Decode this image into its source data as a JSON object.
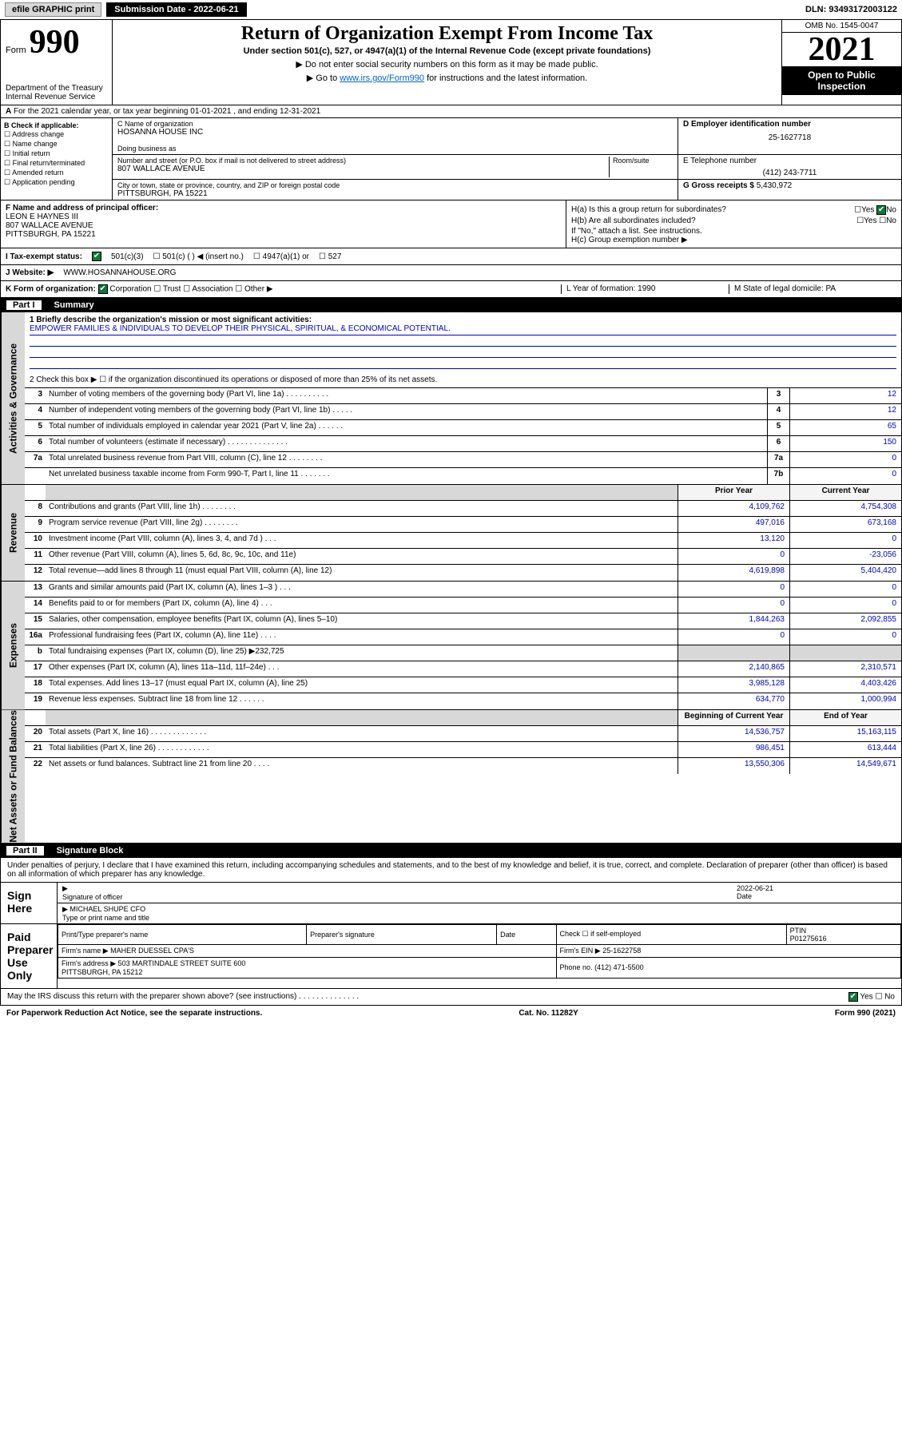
{
  "topbar": {
    "efile": "efile GRAPHIC print",
    "sub_label": "Submission Date - 2022-06-21",
    "dln": "DLN: 93493172003122"
  },
  "header": {
    "form_word": "Form",
    "form_num": "990",
    "dept": "Department of the Treasury\nInternal Revenue Service",
    "title": "Return of Organization Exempt From Income Tax",
    "subtitle": "Under section 501(c), 527, or 4947(a)(1) of the Internal Revenue Code (except private foundations)",
    "note1": "▶ Do not enter social security numbers on this form as it may be made public.",
    "note2_pre": "▶ Go to ",
    "note2_link": "www.irs.gov/Form990",
    "note2_post": " for instructions and the latest information.",
    "omb": "OMB No. 1545-0047",
    "year": "2021",
    "open": "Open to Public Inspection"
  },
  "lineA": "For the 2021 calendar year, or tax year beginning 01-01-2021 , and ending 12-31-2021",
  "boxB": {
    "label": "B Check if applicable:",
    "opts": [
      "Address change",
      "Name change",
      "Initial return",
      "Final return/terminated",
      "Amended return",
      "Application pending"
    ]
  },
  "boxC": {
    "name_lbl": "C Name of organization",
    "name": "HOSANNA HOUSE INC",
    "dba_lbl": "Doing business as",
    "addr_lbl": "Number and street (or P.O. box if mail is not delivered to street address)",
    "room_lbl": "Room/suite",
    "addr": "807 WALLACE AVENUE",
    "city_lbl": "City or town, state or province, country, and ZIP or foreign postal code",
    "city": "PITTSBURGH, PA  15221"
  },
  "boxD": {
    "lbl": "D Employer identification number",
    "val": "25-1627718"
  },
  "boxE": {
    "lbl": "E Telephone number",
    "val": "(412) 243-7711"
  },
  "boxG": {
    "lbl": "G Gross receipts $",
    "val": "5,430,972"
  },
  "boxF": {
    "lbl": "F Name and address of principal officer:",
    "name": "LEON E HAYNES III",
    "addr": "807 WALLACE AVENUE\nPITTSBURGH, PA  15221"
  },
  "boxH": {
    "a": "H(a) Is this a group return for subordinates?",
    "a_yes": "Yes",
    "a_no": "No",
    "b": "H(b) Are all subordinates included?",
    "b_note": "If \"No,\" attach a list. See instructions.",
    "c": "H(c) Group exemption number ▶"
  },
  "rowI": {
    "lbl": "I   Tax-exempt status:",
    "o1": "501(c)(3)",
    "o2": "501(c) (  ) ◀ (insert no.)",
    "o3": "4947(a)(1) or",
    "o4": "527"
  },
  "rowJ": {
    "lbl": "J   Website: ▶",
    "val": "WWW.HOSANNAHOUSE.ORG"
  },
  "rowK": {
    "lbl": "K Form of organization:",
    "o1": "Corporation",
    "o2": "Trust",
    "o3": "Association",
    "o4": "Other ▶",
    "L": "L Year of formation: 1990",
    "M": "M State of legal domicile: PA"
  },
  "part1": {
    "num": "Part I",
    "title": "Summary"
  },
  "mission": {
    "q1": "1  Briefly describe the organization's mission or most significant activities:",
    "txt": "EMPOWER FAMILIES & INDIVIDUALS TO DEVELOP THEIR PHYSICAL, SPIRITUAL, & ECONOMICAL POTENTIAL.",
    "q2": "2  Check this box ▶ ☐  if the organization discontinued its operations or disposed of more than 25% of its net assets."
  },
  "gov_lines": [
    {
      "n": "3",
      "t": "Number of voting members of the governing body (Part VI, line 1a)  .  .  .  .  .  .  .  .  .  .",
      "b": "3",
      "v": "12"
    },
    {
      "n": "4",
      "t": "Number of independent voting members of the governing body (Part VI, line 1b)  .  .  .  .  .",
      "b": "4",
      "v": "12"
    },
    {
      "n": "5",
      "t": "Total number of individuals employed in calendar year 2021 (Part V, line 2a)  .  .  .  .  .  .",
      "b": "5",
      "v": "65"
    },
    {
      "n": "6",
      "t": "Total number of volunteers (estimate if necessary)  .  .  .  .  .  .  .  .  .  .  .  .  .  .",
      "b": "6",
      "v": "150"
    },
    {
      "n": "7a",
      "t": "Total unrelated business revenue from Part VIII, column (C), line 12  .  .  .  .  .  .  .  .",
      "b": "7a",
      "v": "0"
    },
    {
      "n": "",
      "t": "Net unrelated business taxable income from Form 990-T, Part I, line 11  .  .  .  .  .  .  .",
      "b": "7b",
      "v": "0"
    }
  ],
  "rev_hdr": {
    "p": "Prior Year",
    "c": "Current Year"
  },
  "rev_lines": [
    {
      "n": "8",
      "t": "Contributions and grants (Part VIII, line 1h)  .  .  .  .  .  .  .  .",
      "p": "4,109,762",
      "c": "4,754,308"
    },
    {
      "n": "9",
      "t": "Program service revenue (Part VIII, line 2g)  .  .  .  .  .  .  .  .",
      "p": "497,016",
      "c": "673,168"
    },
    {
      "n": "10",
      "t": "Investment income (Part VIII, column (A), lines 3, 4, and 7d )  .  .  .",
      "p": "13,120",
      "c": "0"
    },
    {
      "n": "11",
      "t": "Other revenue (Part VIII, column (A), lines 5, 6d, 8c, 9c, 10c, and 11e)",
      "p": "0",
      "c": "-23,056"
    },
    {
      "n": "12",
      "t": "Total revenue—add lines 8 through 11 (must equal Part VIII, column (A), line 12)",
      "p": "4,619,898",
      "c": "5,404,420"
    }
  ],
  "exp_lines": [
    {
      "n": "13",
      "t": "Grants and similar amounts paid (Part IX, column (A), lines 1–3 )  .  .  .",
      "p": "0",
      "c": "0"
    },
    {
      "n": "14",
      "t": "Benefits paid to or for members (Part IX, column (A), line 4)  .  .  .",
      "p": "0",
      "c": "0"
    },
    {
      "n": "15",
      "t": "Salaries, other compensation, employee benefits (Part IX, column (A), lines 5–10)",
      "p": "1,844,263",
      "c": "2,092,855"
    },
    {
      "n": "16a",
      "t": "Professional fundraising fees (Part IX, column (A), line 11e)  .  .  .  .",
      "p": "0",
      "c": "0"
    },
    {
      "n": "b",
      "t": "Total fundraising expenses (Part IX, column (D), line 25) ▶232,725",
      "p": "",
      "c": "",
      "grey": true
    },
    {
      "n": "17",
      "t": "Other expenses (Part IX, column (A), lines 11a–11d, 11f–24e)  .  .  .",
      "p": "2,140,865",
      "c": "2,310,571"
    },
    {
      "n": "18",
      "t": "Total expenses. Add lines 13–17 (must equal Part IX, column (A), line 25)",
      "p": "3,985,128",
      "c": "4,403,426"
    },
    {
      "n": "19",
      "t": "Revenue less expenses. Subtract line 18 from line 12  .  .  .  .  .  .",
      "p": "634,770",
      "c": "1,000,994"
    }
  ],
  "na_hdr": {
    "p": "Beginning of Current Year",
    "c": "End of Year"
  },
  "na_lines": [
    {
      "n": "20",
      "t": "Total assets (Part X, line 16)  .  .  .  .  .  .  .  .  .  .  .  .  .",
      "p": "14,536,757",
      "c": "15,163,115"
    },
    {
      "n": "21",
      "t": "Total liabilities (Part X, line 26)  .  .  .  .  .  .  .  .  .  .  .  .",
      "p": "986,451",
      "c": "613,444"
    },
    {
      "n": "22",
      "t": "Net assets or fund balances. Subtract line 21 from line 20  .  .  .  .",
      "p": "13,550,306",
      "c": "14,549,671"
    }
  ],
  "side_tabs": {
    "gov": "Activities & Governance",
    "rev": "Revenue",
    "exp": "Expenses",
    "na": "Net Assets or Fund Balances"
  },
  "part2": {
    "num": "Part II",
    "title": "Signature Block"
  },
  "sig": {
    "decl": "Under penalties of perjury, I declare that I have examined this return, including accompanying schedules and statements, and to the best of my knowledge and belief, it is true, correct, and complete. Declaration of preparer (other than officer) is based on all information of which preparer has any knowledge.",
    "sign_here": "Sign Here",
    "sig_officer": "Signature of officer",
    "date": "2022-06-21",
    "date_lbl": "Date",
    "name": "MICHAEL SHUPE CFO",
    "name_lbl": "Type or print name and title",
    "paid": "Paid Preparer Use Only",
    "h1": "Print/Type preparer's name",
    "h2": "Preparer's signature",
    "h3": "Date",
    "h4_pre": "Check ☐ if self-employed",
    "h5": "PTIN",
    "ptin": "P01275616",
    "firm_lbl": "Firm's name    ▶",
    "firm": "MAHER DUESSEL CPA'S",
    "ein_lbl": "Firm's EIN ▶",
    "ein": "25-1622758",
    "addr_lbl": "Firm's address ▶",
    "addr": "503 MARTINDALE STREET SUITE 600\nPITTSBURGH, PA  15212",
    "phone_lbl": "Phone no.",
    "phone": "(412) 471-5500",
    "may": "May the IRS discuss this return with the preparer shown above? (see instructions)  .  .  .  .  .  .  .  .  .  .  .  .  .  .",
    "yes": "Yes",
    "no": "No"
  },
  "footer": {
    "left": "For Paperwork Reduction Act Notice, see the separate instructions.",
    "mid": "Cat. No. 11282Y",
    "right": "Form 990 (2021)"
  }
}
